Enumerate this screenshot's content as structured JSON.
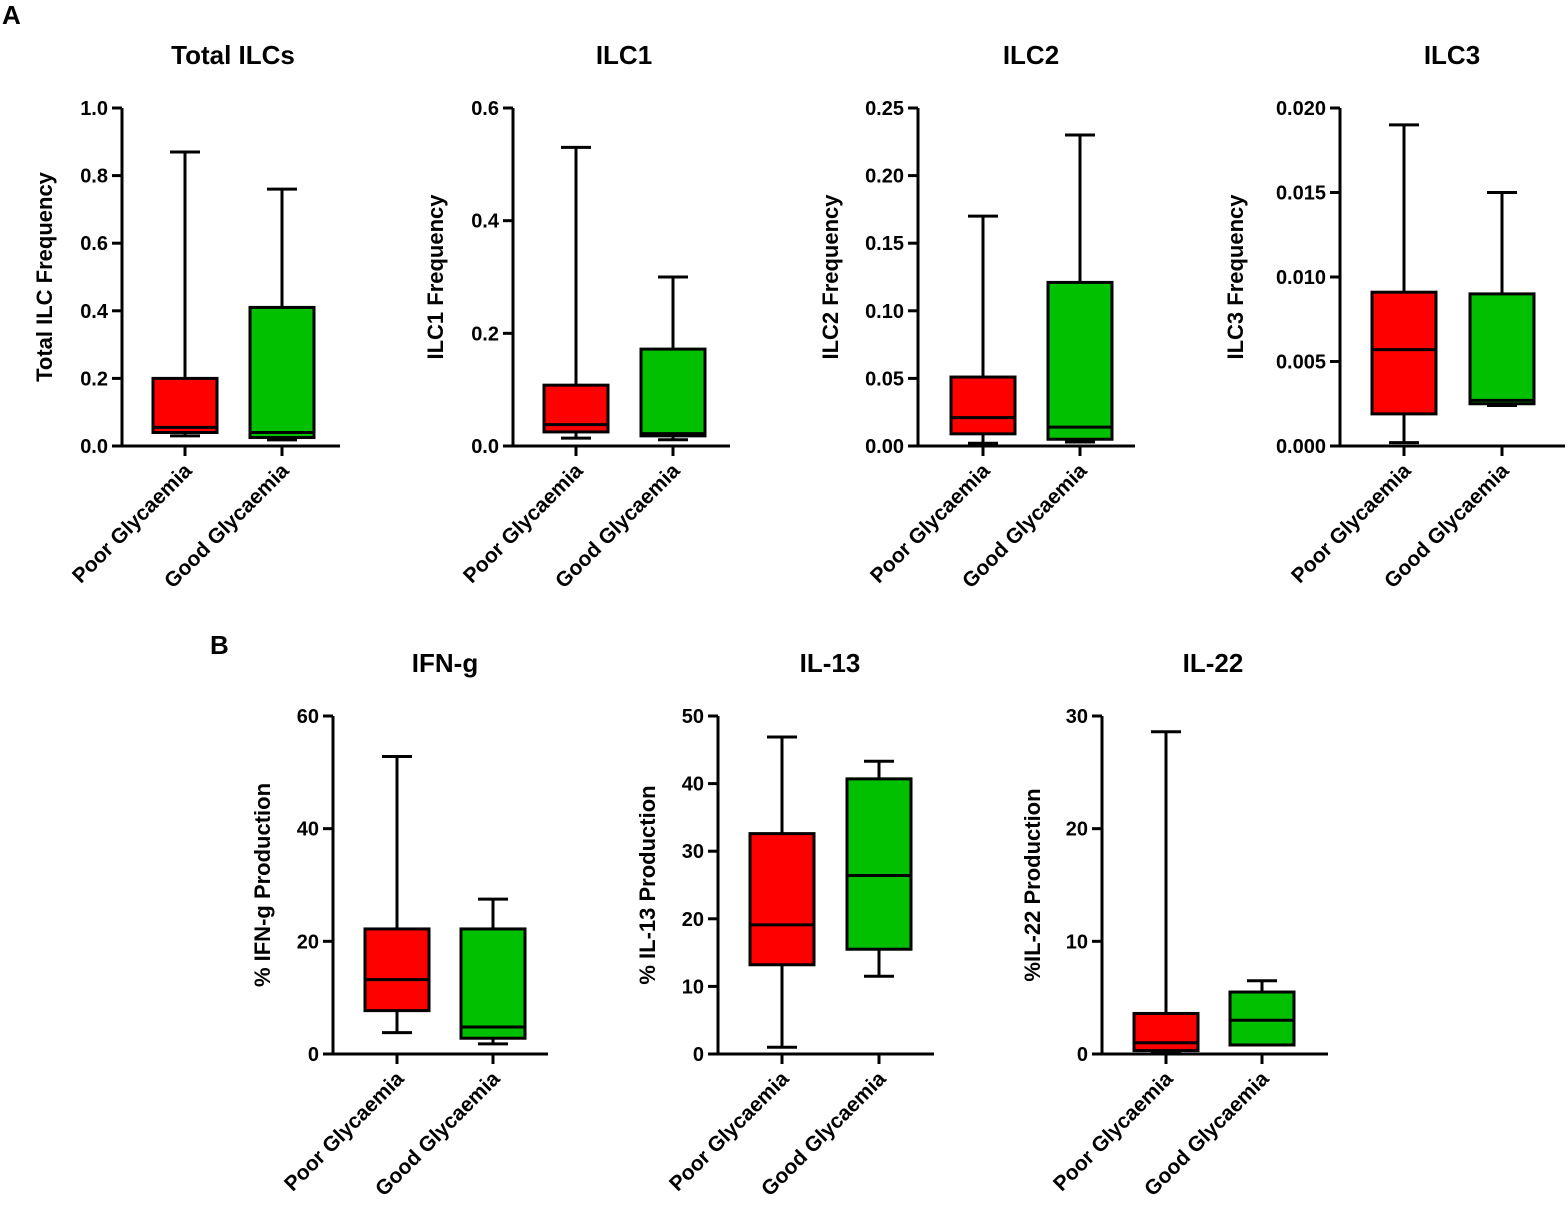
{
  "panels": {
    "A": "A",
    "B": "B"
  },
  "colors": {
    "poor": "#ff0000",
    "good": "#00c000",
    "stroke": "#000000"
  },
  "chart_data": [
    {
      "type": "boxplot",
      "panel": "A",
      "title": "Total ILCs",
      "ylabel": "Total ILC Frequency",
      "ylim": [
        0,
        1.0
      ],
      "yticks": [
        "0.0",
        "0.2",
        "0.4",
        "0.6",
        "0.8",
        "1.0"
      ],
      "categories": [
        "Poor Glycaemia",
        "Good Glycaemia"
      ],
      "boxes": [
        {
          "min": 0.03,
          "q1": 0.04,
          "median": 0.055,
          "q3": 0.2,
          "max": 0.87
        },
        {
          "min": 0.018,
          "q1": 0.025,
          "median": 0.04,
          "q3": 0.41,
          "max": 0.76
        }
      ]
    },
    {
      "type": "boxplot",
      "panel": "A",
      "title": "ILC1",
      "ylabel": "ILC1 Frequency",
      "ylim": [
        0,
        0.6
      ],
      "yticks": [
        "0.0",
        "0.2",
        "0.4",
        "0.6"
      ],
      "categories": [
        "Poor Glycaemia",
        "Good Glycaemia"
      ],
      "boxes": [
        {
          "min": 0.014,
          "q1": 0.025,
          "median": 0.038,
          "q3": 0.108,
          "max": 0.53
        },
        {
          "min": 0.011,
          "q1": 0.018,
          "median": 0.022,
          "q3": 0.172,
          "max": 0.3
        }
      ]
    },
    {
      "type": "boxplot",
      "panel": "A",
      "title": "ILC2",
      "ylabel": "ILC2 Frequency",
      "ylim": [
        0,
        0.25
      ],
      "yticks": [
        "0.00",
        "0.05",
        "0.10",
        "0.15",
        "0.20",
        "0.25"
      ],
      "categories": [
        "Poor Glycaemia",
        "Good Glycaemia"
      ],
      "boxes": [
        {
          "min": 0.002,
          "q1": 0.009,
          "median": 0.021,
          "q3": 0.051,
          "max": 0.17
        },
        {
          "min": 0.003,
          "q1": 0.005,
          "median": 0.014,
          "q3": 0.121,
          "max": 0.23
        }
      ]
    },
    {
      "type": "boxplot",
      "panel": "A",
      "title": "ILC3",
      "ylabel": "ILC3 Frequency",
      "ylim": [
        0,
        0.02
      ],
      "yticks": [
        "0.000",
        "0.005",
        "0.010",
        "0.015",
        "0.020"
      ],
      "categories": [
        "Poor Glycaemia",
        "Good Glycaemia"
      ],
      "boxes": [
        {
          "min": 0.0002,
          "q1": 0.0019,
          "median": 0.0057,
          "q3": 0.0091,
          "max": 0.019
        },
        {
          "min": 0.0024,
          "q1": 0.0025,
          "median": 0.0027,
          "q3": 0.009,
          "max": 0.015
        }
      ]
    },
    {
      "type": "boxplot",
      "panel": "B",
      "title": "IFN-g",
      "ylabel": "% IFN-g Production",
      "ylim": [
        0,
        60
      ],
      "yticks": [
        "0",
        "20",
        "40",
        "60"
      ],
      "categories": [
        "Poor Glycaemia",
        "Good Glycaemia"
      ],
      "boxes": [
        {
          "min": 3.8,
          "q1": 7.7,
          "median": 13.2,
          "q3": 22.2,
          "max": 52.8
        },
        {
          "min": 1.8,
          "q1": 2.8,
          "median": 4.8,
          "q3": 22.2,
          "max": 27.5
        }
      ]
    },
    {
      "type": "boxplot",
      "panel": "B",
      "title": "IL-13",
      "ylabel": "% IL-13 Production",
      "ylim": [
        0,
        50
      ],
      "yticks": [
        "0",
        "10",
        "20",
        "30",
        "40",
        "50"
      ],
      "categories": [
        "Poor Glycaemia",
        "Good Glycaemia"
      ],
      "boxes": [
        {
          "min": 1.0,
          "q1": 13.2,
          "median": 19.1,
          "q3": 32.6,
          "max": 46.9
        },
        {
          "min": 11.5,
          "q1": 15.5,
          "median": 26.4,
          "q3": 40.7,
          "max": 43.3
        }
      ]
    },
    {
      "type": "boxplot",
      "panel": "B",
      "title": "IL-22",
      "ylabel": "%IL-22 Production",
      "ylim": [
        0,
        30
      ],
      "yticks": [
        "0",
        "10",
        "20",
        "30"
      ],
      "categories": [
        "Poor Glycaemia",
        "Good Glycaemia"
      ],
      "boxes": [
        {
          "min": 0.1,
          "q1": 0.3,
          "median": 1.0,
          "q3": 3.6,
          "max": 28.6
        },
        {
          "min": 0.8,
          "q1": 0.8,
          "median": 3.0,
          "q3": 5.5,
          "max": 6.5
        }
      ]
    }
  ]
}
